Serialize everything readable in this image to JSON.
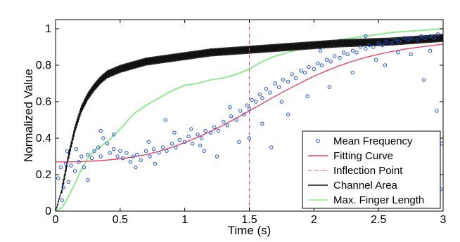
{
  "chart_data": {
    "type": "scatter",
    "xlabel": "Time (s)",
    "ylabel": "Normalized Value",
    "xlim": [
      0,
      3
    ],
    "ylim": [
      0,
      1.05
    ],
    "xticks": [
      0,
      0.5,
      1,
      1.5,
      2,
      2.5,
      3
    ],
    "yticks": [
      0,
      0.2,
      0.4,
      0.6,
      0.8,
      1
    ],
    "xtick_labels": [
      "0",
      "0.5",
      "1",
      "1.5",
      "2",
      "2.5",
      "3"
    ],
    "ytick_labels": [
      "0",
      "0.2",
      "0.4",
      "0.6",
      "0.8",
      "1"
    ],
    "grid": false,
    "legend_position": "bottom-right",
    "series": [
      {
        "name": "Mean Frequency",
        "kind": "scatter",
        "color": "#1f4fd8",
        "points": [
          [
            0.02,
            0.18
          ],
          [
            0.04,
            0.24
          ],
          [
            0.06,
            0.13
          ],
          [
            0.08,
            0.26
          ],
          [
            0.1,
            0.16
          ],
          [
            0.12,
            0.25
          ],
          [
            0.15,
            0.22
          ],
          [
            0.18,
            0.27
          ],
          [
            0.2,
            0.3
          ],
          [
            0.22,
            0.24
          ],
          [
            0.25,
            0.31
          ],
          [
            0.28,
            0.29
          ],
          [
            0.3,
            0.33
          ],
          [
            0.33,
            0.35
          ],
          [
            0.35,
            0.3
          ],
          [
            0.37,
            0.4
          ],
          [
            0.4,
            0.37
          ],
          [
            0.42,
            0.32
          ],
          [
            0.45,
            0.34
          ],
          [
            0.48,
            0.3
          ],
          [
            0.5,
            0.33
          ],
          [
            0.52,
            0.29
          ],
          [
            0.55,
            0.32
          ],
          [
            0.58,
            0.27
          ],
          [
            0.6,
            0.3
          ],
          [
            0.63,
            0.31
          ],
          [
            0.66,
            0.28
          ],
          [
            0.7,
            0.33
          ],
          [
            0.73,
            0.3
          ],
          [
            0.76,
            0.34
          ],
          [
            0.8,
            0.32
          ],
          [
            0.83,
            0.35
          ],
          [
            0.86,
            0.33
          ],
          [
            0.9,
            0.37
          ],
          [
            0.93,
            0.35
          ],
          [
            0.96,
            0.39
          ],
          [
            1.0,
            0.38
          ],
          [
            1.03,
            0.41
          ],
          [
            1.06,
            0.37
          ],
          [
            1.1,
            0.42
          ],
          [
            1.13,
            0.4
          ],
          [
            1.16,
            0.44
          ],
          [
            1.2,
            0.43
          ],
          [
            1.23,
            0.46
          ],
          [
            1.26,
            0.44
          ],
          [
            1.3,
            0.49
          ],
          [
            1.33,
            0.47
          ],
          [
            1.36,
            0.52
          ],
          [
            1.4,
            0.5
          ],
          [
            1.43,
            0.55
          ],
          [
            1.46,
            0.53
          ],
          [
            1.48,
            0.58
          ],
          [
            1.5,
            0.56
          ],
          [
            1.52,
            0.61
          ],
          [
            1.55,
            0.6
          ],
          [
            1.58,
            0.64
          ],
          [
            1.6,
            0.62
          ],
          [
            1.63,
            0.67
          ],
          [
            1.66,
            0.65
          ],
          [
            1.7,
            0.7
          ],
          [
            1.73,
            0.68
          ],
          [
            1.76,
            0.72
          ],
          [
            1.8,
            0.71
          ],
          [
            1.83,
            0.75
          ],
          [
            1.86,
            0.73
          ],
          [
            1.9,
            0.77
          ],
          [
            1.93,
            0.76
          ],
          [
            1.96,
            0.79
          ],
          [
            2.0,
            0.78
          ],
          [
            2.03,
            0.81
          ],
          [
            2.06,
            0.8
          ],
          [
            2.1,
            0.83
          ],
          [
            2.13,
            0.82
          ],
          [
            2.16,
            0.85
          ],
          [
            2.2,
            0.84
          ],
          [
            2.23,
            0.87
          ],
          [
            2.26,
            0.86
          ],
          [
            2.3,
            0.88
          ],
          [
            2.33,
            0.87
          ],
          [
            2.36,
            0.9
          ],
          [
            2.4,
            0.89
          ],
          [
            2.43,
            0.91
          ],
          [
            2.46,
            0.9
          ],
          [
            2.5,
            0.92
          ],
          [
            2.53,
            0.91
          ],
          [
            2.56,
            0.93
          ],
          [
            2.6,
            0.92
          ],
          [
            2.63,
            0.94
          ],
          [
            2.66,
            0.93
          ],
          [
            2.7,
            0.95
          ],
          [
            2.73,
            0.94
          ],
          [
            2.76,
            0.95
          ],
          [
            2.8,
            0.94
          ],
          [
            2.83,
            0.96
          ],
          [
            2.86,
            0.95
          ],
          [
            2.9,
            0.96
          ],
          [
            2.93,
            0.95
          ],
          [
            2.96,
            0.97
          ],
          [
            0.05,
            0.06
          ],
          [
            0.25,
            0.17
          ],
          [
            0.85,
            0.5
          ],
          [
            1.25,
            0.3
          ],
          [
            1.5,
            0.4
          ],
          [
            1.67,
            0.35
          ],
          [
            1.8,
            0.53
          ],
          [
            2.12,
            0.68
          ],
          [
            2.48,
            0.83
          ],
          [
            2.85,
            0.72
          ],
          [
            2.95,
            0.55
          ],
          [
            2.98,
            0.12
          ],
          [
            2.99,
            0.37
          ],
          [
            2.75,
            0.86
          ],
          [
            2.55,
            0.8
          ],
          [
            2.3,
            0.76
          ],
          [
            1.95,
            0.63
          ],
          [
            1.6,
            0.48
          ],
          [
            1.42,
            0.38
          ],
          [
            1.15,
            0.33
          ],
          [
            0.92,
            0.43
          ],
          [
            0.72,
            0.38
          ],
          [
            0.62,
            0.24
          ],
          [
            0.45,
            0.42
          ],
          [
            0.35,
            0.44
          ],
          [
            0.16,
            0.34
          ],
          [
            0.09,
            0.33
          ],
          [
            1.05,
            0.45
          ],
          [
            1.35,
            0.57
          ],
          [
            1.75,
            0.6
          ],
          [
            2.05,
            0.88
          ],
          [
            2.4,
            0.96
          ],
          [
            2.65,
            0.87
          ],
          [
            2.9,
            0.88
          ],
          [
            0.77,
            0.26
          ],
          [
            1.12,
            0.36
          ]
        ]
      },
      {
        "name": "Fitting Curve",
        "kind": "line",
        "color": "#e8436a",
        "x": [
          0,
          0.1,
          0.2,
          0.3,
          0.4,
          0.5,
          0.6,
          0.7,
          0.8,
          0.9,
          1.0,
          1.1,
          1.2,
          1.3,
          1.4,
          1.5,
          1.6,
          1.7,
          1.8,
          1.9,
          2.0,
          2.1,
          2.2,
          2.3,
          2.4,
          2.5,
          2.6,
          2.7,
          2.8,
          2.9,
          3.0
        ],
        "y": [
          0.27,
          0.27,
          0.272,
          0.275,
          0.28,
          0.287,
          0.297,
          0.31,
          0.328,
          0.35,
          0.376,
          0.405,
          0.437,
          0.472,
          0.51,
          0.55,
          0.59,
          0.63,
          0.668,
          0.705,
          0.74,
          0.77,
          0.798,
          0.822,
          0.843,
          0.86,
          0.875,
          0.888,
          0.898,
          0.907,
          0.915
        ]
      },
      {
        "name": "Inflection Point",
        "kind": "vline",
        "color": "#e8436a",
        "x": 1.5
      },
      {
        "name": "Channel Area",
        "kind": "line",
        "color": "#111111",
        "x": [
          0,
          0.05,
          0.1,
          0.15,
          0.2,
          0.25,
          0.3,
          0.35,
          0.4,
          0.5,
          0.6,
          0.7,
          0.8,
          0.9,
          1.0,
          1.2,
          1.4,
          1.6,
          1.8,
          2.0,
          2.2,
          2.4,
          2.6,
          2.8,
          3.0
        ],
        "y": [
          0.0,
          0.12,
          0.3,
          0.45,
          0.56,
          0.63,
          0.68,
          0.72,
          0.75,
          0.78,
          0.8,
          0.82,
          0.83,
          0.84,
          0.85,
          0.87,
          0.88,
          0.89,
          0.9,
          0.91,
          0.92,
          0.925,
          0.93,
          0.94,
          0.95
        ]
      },
      {
        "name": "Max. Finger Length",
        "kind": "line",
        "color": "#90ea90",
        "x": [
          0,
          0.05,
          0.1,
          0.15,
          0.2,
          0.25,
          0.3,
          0.4,
          0.5,
          0.6,
          0.7,
          0.8,
          0.9,
          1.0,
          1.1,
          1.2,
          1.3,
          1.4,
          1.5,
          1.6,
          1.7,
          1.8,
          1.9,
          2.0,
          2.2,
          2.4,
          2.6,
          2.8,
          3.0
        ],
        "y": [
          0.0,
          0.02,
          0.08,
          0.15,
          0.23,
          0.29,
          0.33,
          0.38,
          0.45,
          0.53,
          0.58,
          0.62,
          0.66,
          0.69,
          0.7,
          0.72,
          0.73,
          0.75,
          0.78,
          0.82,
          0.85,
          0.87,
          0.89,
          0.91,
          0.94,
          0.96,
          0.98,
          0.99,
          1.0
        ]
      }
    ]
  }
}
